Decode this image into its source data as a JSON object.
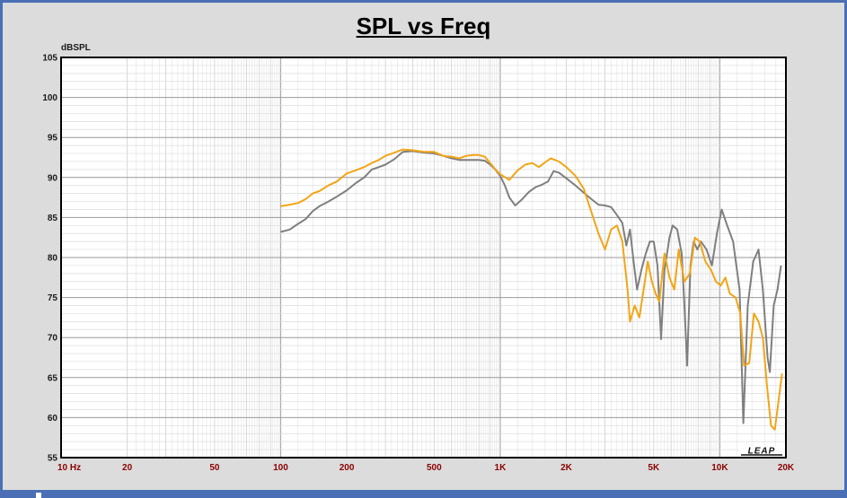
{
  "chart_data": {
    "type": "line",
    "title": "SPL vs Freq",
    "ylabel": "dBSPL",
    "xlabel": "",
    "x_scale": "log",
    "xlim": [
      10,
      20000
    ],
    "ylim": [
      55,
      105
    ],
    "grid": true,
    "y_ticks": [
      55,
      60,
      65,
      70,
      75,
      80,
      85,
      90,
      95,
      100,
      105
    ],
    "x_tick_labels": [
      {
        "value": 10,
        "label": "10 Hz"
      },
      {
        "value": 20,
        "label": "20"
      },
      {
        "value": 50,
        "label": "50"
      },
      {
        "value": 100,
        "label": "100"
      },
      {
        "value": 200,
        "label": "200"
      },
      {
        "value": 500,
        "label": "500"
      },
      {
        "value": 1000,
        "label": "1K"
      },
      {
        "value": 2000,
        "label": "2K"
      },
      {
        "value": 5000,
        "label": "5K"
      },
      {
        "value": 10000,
        "label": "10K"
      },
      {
        "value": 20000,
        "label": "20K"
      }
    ],
    "series": [
      {
        "color": "#7f7f7f",
        "points": [
          [
            100,
            83.2
          ],
          [
            110,
            83.5
          ],
          [
            120,
            84.2
          ],
          [
            130,
            84.8
          ],
          [
            140,
            85.8
          ],
          [
            150,
            86.4
          ],
          [
            165,
            87.0
          ],
          [
            180,
            87.6
          ],
          [
            200,
            88.4
          ],
          [
            220,
            89.3
          ],
          [
            240,
            90.0
          ],
          [
            260,
            91.0
          ],
          [
            280,
            91.3
          ],
          [
            300,
            91.6
          ],
          [
            330,
            92.3
          ],
          [
            360,
            93.2
          ],
          [
            400,
            93.3
          ],
          [
            450,
            93.1
          ],
          [
            500,
            93.0
          ],
          [
            550,
            92.7
          ],
          [
            600,
            92.4
          ],
          [
            650,
            92.2
          ],
          [
            700,
            92.2
          ],
          [
            750,
            92.2
          ],
          [
            800,
            92.2
          ],
          [
            850,
            92.1
          ],
          [
            900,
            91.6
          ],
          [
            950,
            91.0
          ],
          [
            1000,
            90.2
          ],
          [
            1050,
            89.0
          ],
          [
            1100,
            87.5
          ],
          [
            1170,
            86.5
          ],
          [
            1250,
            87.2
          ],
          [
            1350,
            88.2
          ],
          [
            1450,
            88.8
          ],
          [
            1550,
            89.1
          ],
          [
            1650,
            89.5
          ],
          [
            1750,
            90.8
          ],
          [
            1850,
            90.6
          ],
          [
            2000,
            89.9
          ],
          [
            2200,
            89.0
          ],
          [
            2400,
            88.1
          ],
          [
            2600,
            87.3
          ],
          [
            2800,
            86.6
          ],
          [
            3000,
            86.5
          ],
          [
            3200,
            86.3
          ],
          [
            3400,
            85.3
          ],
          [
            3600,
            84.3
          ],
          [
            3750,
            81.5
          ],
          [
            3900,
            83.5
          ],
          [
            4050,
            79.5
          ],
          [
            4200,
            76.0
          ],
          [
            4400,
            78.5
          ],
          [
            4600,
            80.5
          ],
          [
            4800,
            82.0
          ],
          [
            5000,
            82.0
          ],
          [
            5200,
            79.0
          ],
          [
            5400,
            69.8
          ],
          [
            5600,
            78.5
          ],
          [
            5900,
            82.5
          ],
          [
            6100,
            84.0
          ],
          [
            6400,
            83.5
          ],
          [
            6700,
            80.5
          ],
          [
            6900,
            74.0
          ],
          [
            7100,
            66.5
          ],
          [
            7350,
            79.0
          ],
          [
            7600,
            82.0
          ],
          [
            7900,
            81.0
          ],
          [
            8200,
            82.0
          ],
          [
            8700,
            81.0
          ],
          [
            9200,
            79.0
          ],
          [
            9700,
            83.0
          ],
          [
            10200,
            86.0
          ],
          [
            10800,
            84.0
          ],
          [
            11500,
            82.0
          ],
          [
            12300,
            76.0
          ],
          [
            12800,
            59.3
          ],
          [
            13400,
            74.0
          ],
          [
            14200,
            79.5
          ],
          [
            15000,
            81.0
          ],
          [
            15700,
            76.0
          ],
          [
            16500,
            67.5
          ],
          [
            16900,
            65.7
          ],
          [
            17600,
            74.0
          ],
          [
            18300,
            76.0
          ],
          [
            19000,
            79.0
          ]
        ]
      },
      {
        "color": "#f2a516",
        "points": [
          [
            100,
            86.4
          ],
          [
            110,
            86.6
          ],
          [
            120,
            86.8
          ],
          [
            130,
            87.3
          ],
          [
            140,
            88.0
          ],
          [
            150,
            88.3
          ],
          [
            165,
            89.0
          ],
          [
            180,
            89.5
          ],
          [
            200,
            90.5
          ],
          [
            220,
            90.9
          ],
          [
            240,
            91.3
          ],
          [
            260,
            91.8
          ],
          [
            280,
            92.2
          ],
          [
            300,
            92.7
          ],
          [
            330,
            93.1
          ],
          [
            360,
            93.5
          ],
          [
            400,
            93.4
          ],
          [
            450,
            93.2
          ],
          [
            500,
            93.2
          ],
          [
            550,
            92.7
          ],
          [
            600,
            92.6
          ],
          [
            650,
            92.4
          ],
          [
            700,
            92.7
          ],
          [
            750,
            92.8
          ],
          [
            800,
            92.8
          ],
          [
            850,
            92.6
          ],
          [
            900,
            91.8
          ],
          [
            950,
            91.0
          ],
          [
            1000,
            90.4
          ],
          [
            1100,
            89.7
          ],
          [
            1200,
            90.9
          ],
          [
            1300,
            91.6
          ],
          [
            1400,
            91.8
          ],
          [
            1500,
            91.3
          ],
          [
            1600,
            91.9
          ],
          [
            1700,
            92.4
          ],
          [
            1850,
            92.0
          ],
          [
            2000,
            91.3
          ],
          [
            2200,
            90.2
          ],
          [
            2400,
            88.6
          ],
          [
            2600,
            85.7
          ],
          [
            2800,
            83.0
          ],
          [
            3000,
            81.0
          ],
          [
            3200,
            83.5
          ],
          [
            3400,
            84.0
          ],
          [
            3600,
            82.0
          ],
          [
            3800,
            76.0
          ],
          [
            3900,
            72.0
          ],
          [
            4100,
            74.0
          ],
          [
            4300,
            72.5
          ],
          [
            4500,
            76.0
          ],
          [
            4700,
            79.5
          ],
          [
            4900,
            77.0
          ],
          [
            5100,
            75.5
          ],
          [
            5300,
            74.5
          ],
          [
            5600,
            80.5
          ],
          [
            5900,
            77.5
          ],
          [
            6200,
            76.0
          ],
          [
            6500,
            81.0
          ],
          [
            6900,
            77.0
          ],
          [
            7300,
            78.0
          ],
          [
            7700,
            82.5
          ],
          [
            8100,
            82.0
          ],
          [
            8600,
            79.5
          ],
          [
            9100,
            78.5
          ],
          [
            9600,
            77.0
          ],
          [
            10100,
            76.5
          ],
          [
            10600,
            77.5
          ],
          [
            11100,
            75.5
          ],
          [
            11800,
            75.0
          ],
          [
            12400,
            73.0
          ],
          [
            12900,
            66.5
          ],
          [
            13600,
            66.8
          ],
          [
            14300,
            73.0
          ],
          [
            15000,
            72.0
          ],
          [
            15700,
            70.0
          ],
          [
            16400,
            64.0
          ],
          [
            17100,
            59.0
          ],
          [
            17800,
            58.5
          ],
          [
            18500,
            62.0
          ],
          [
            19200,
            65.5
          ]
        ]
      }
    ]
  }
}
